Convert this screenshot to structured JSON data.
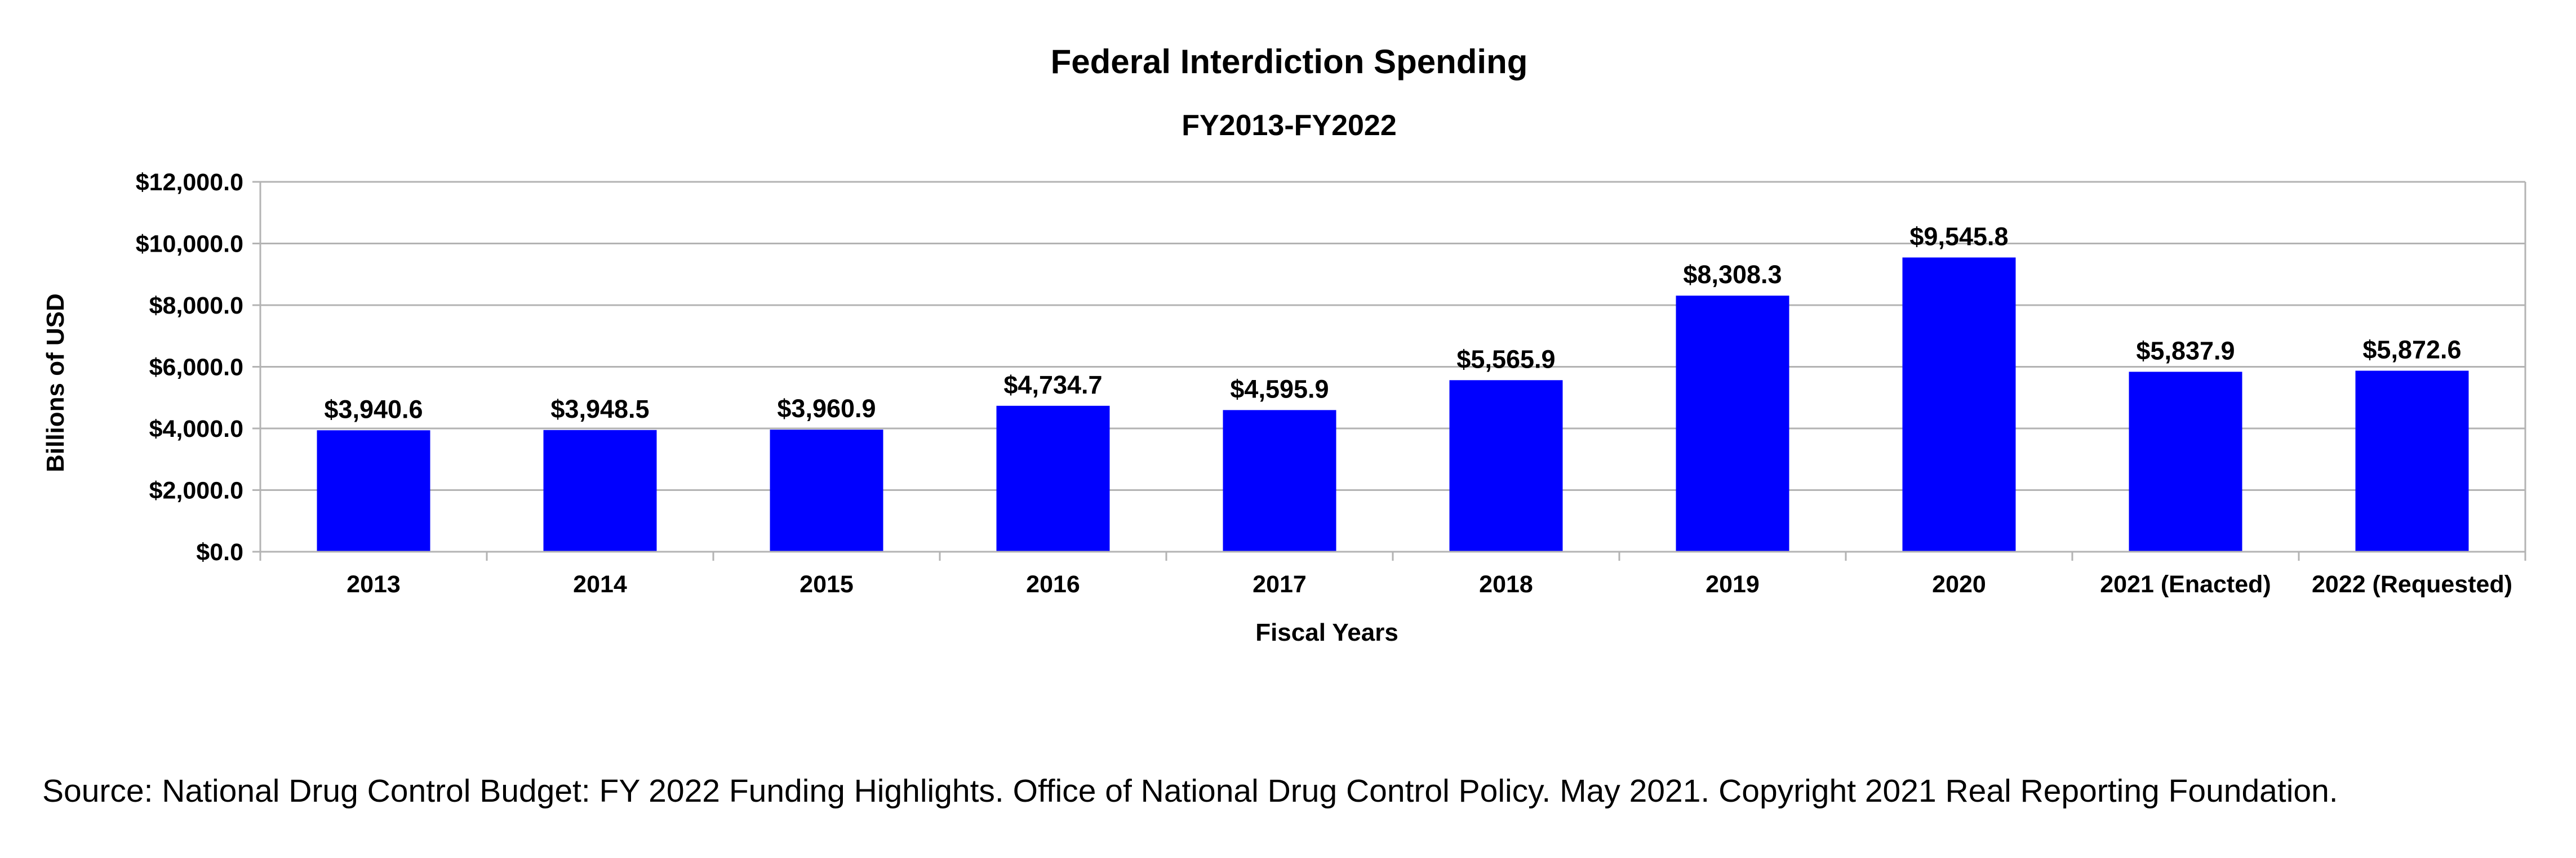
{
  "chart_data": {
    "type": "bar",
    "title": "Federal Interdiction Spending",
    "subtitle": "FY2013-FY2022",
    "xlabel": "Fiscal Years",
    "ylabel": "Billions of USD",
    "categories": [
      "2013",
      "2014",
      "2015",
      "2016",
      "2017",
      "2018",
      "2019",
      "2020",
      "2021 (Enacted)",
      "2022 (Requested)"
    ],
    "values": [
      3940.6,
      3948.5,
      3960.9,
      4734.7,
      4595.9,
      5565.9,
      8308.3,
      9545.8,
      5837.9,
      5872.6
    ],
    "data_labels": [
      "$3,940.6",
      "$3,948.5",
      "$3,960.9",
      "$4,734.7",
      "$4,595.9",
      "$5,565.9",
      "$8,308.3",
      "$9,545.8",
      "$5,837.9",
      "$5,872.6"
    ],
    "ylim": [
      0,
      12000
    ],
    "yticks": [
      0,
      2000,
      4000,
      6000,
      8000,
      10000,
      12000
    ],
    "ytick_labels": [
      "$0.0",
      "$2,000.0",
      "$4,000.0",
      "$6,000.0",
      "$8,000.0",
      "$10,000.0",
      "$12,000.0"
    ],
    "grid": true,
    "legend": "none",
    "bar_color": "#0000ff",
    "grid_color": "#b3b3b3"
  },
  "source_note": "Source: National Drug Control Budget: FY 2022 Funding Highlights. Office of National Drug Control Policy. May 2021. Copyright 2021 Real Reporting Foundation."
}
